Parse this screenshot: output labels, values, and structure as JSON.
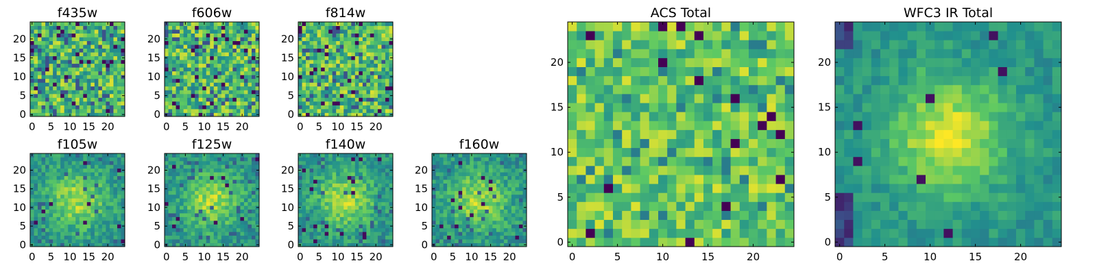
{
  "colormap": {
    "name": "viridis",
    "stops": [
      "#440154",
      "#3b528b",
      "#21908d",
      "#5dc963",
      "#fde725"
    ]
  },
  "chart_data": [
    {
      "type": "heatmap",
      "title": "f435w",
      "grid": [
        25,
        25
      ],
      "xlim": [
        0,
        24
      ],
      "ylim": [
        0,
        24
      ],
      "xticks": [
        0,
        5,
        10,
        15,
        20
      ],
      "yticks": [
        0,
        5,
        10,
        15,
        20
      ],
      "seed": 11,
      "pattern": "noise",
      "value_range": [
        0,
        1
      ]
    },
    {
      "type": "heatmap",
      "title": "f606w",
      "grid": [
        25,
        25
      ],
      "xlim": [
        0,
        24
      ],
      "ylim": [
        0,
        24
      ],
      "xticks": [
        0,
        5,
        10,
        15,
        20
      ],
      "yticks": [
        0,
        5,
        10,
        15,
        20
      ],
      "seed": 23,
      "pattern": "noise",
      "value_range": [
        0,
        1
      ]
    },
    {
      "type": "heatmap",
      "title": "f814w",
      "grid": [
        25,
        25
      ],
      "xlim": [
        0,
        24
      ],
      "ylim": [
        0,
        24
      ],
      "xticks": [
        0,
        5,
        10,
        15,
        20
      ],
      "yticks": [
        0,
        5,
        10,
        15,
        20
      ],
      "seed": 37,
      "pattern": "noise",
      "value_range": [
        0,
        1
      ]
    },
    {
      "type": "heatmap",
      "title": "f105w",
      "grid": [
        25,
        25
      ],
      "xlim": [
        0,
        24
      ],
      "ylim": [
        0,
        24
      ],
      "xticks": [
        0,
        5,
        10,
        15,
        20
      ],
      "yticks": [
        0,
        5,
        10,
        15,
        20
      ],
      "seed": 41,
      "pattern": "blob",
      "value_range": [
        0,
        1
      ]
    },
    {
      "type": "heatmap",
      "title": "f125w",
      "grid": [
        25,
        25
      ],
      "xlim": [
        0,
        24
      ],
      "ylim": [
        0,
        24
      ],
      "xticks": [
        0,
        5,
        10,
        15,
        20
      ],
      "yticks": [
        0,
        5,
        10,
        15,
        20
      ],
      "seed": 53,
      "pattern": "blob",
      "value_range": [
        0,
        1
      ]
    },
    {
      "type": "heatmap",
      "title": "f140w",
      "grid": [
        25,
        25
      ],
      "xlim": [
        0,
        24
      ],
      "ylim": [
        0,
        24
      ],
      "xticks": [
        0,
        5,
        10,
        15,
        20
      ],
      "yticks": [
        0,
        5,
        10,
        15,
        20
      ],
      "seed": 67,
      "pattern": "blob",
      "value_range": [
        0,
        1
      ]
    },
    {
      "type": "heatmap",
      "title": "f160w",
      "grid": [
        25,
        25
      ],
      "xlim": [
        0,
        24
      ],
      "ylim": [
        0,
        24
      ],
      "xticks": [
        0,
        5,
        10,
        15,
        20
      ],
      "yticks": [
        0,
        5,
        10,
        15,
        20
      ],
      "seed": 79,
      "pattern": "blob",
      "value_range": [
        0,
        1
      ]
    },
    {
      "type": "heatmap",
      "title": "ACS Total",
      "grid": [
        25,
        25
      ],
      "xlim": [
        0,
        24
      ],
      "ylim": [
        0,
        24
      ],
      "xticks": [
        0,
        5,
        10,
        15,
        20
      ],
      "yticks": [
        0,
        5,
        10,
        15,
        20
      ],
      "seed": 97,
      "pattern": "noise-soft",
      "value_range": [
        0,
        1
      ]
    },
    {
      "type": "heatmap",
      "title": "WFC3 IR Total",
      "grid": [
        25,
        25
      ],
      "xlim": [
        0,
        24
      ],
      "ylim": [
        0,
        24
      ],
      "xticks": [
        0,
        5,
        10,
        15,
        20
      ],
      "yticks": [
        0,
        5,
        10,
        15,
        20
      ],
      "seed": 101,
      "pattern": "blob-strong",
      "value_range": [
        0,
        1
      ]
    }
  ]
}
